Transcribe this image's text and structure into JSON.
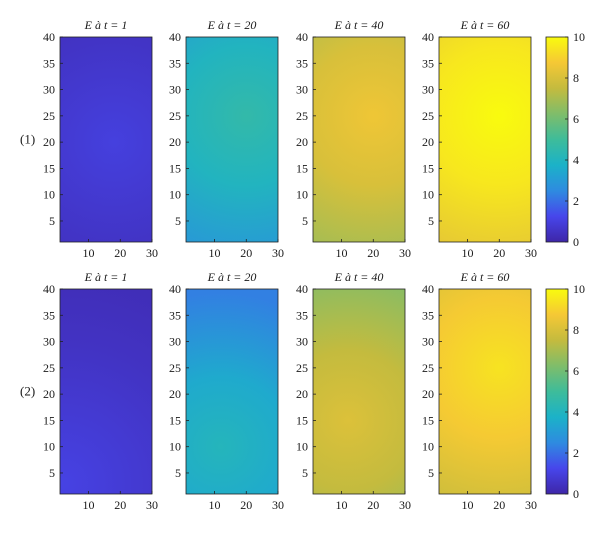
{
  "chart_data": [
    {
      "type": "heatmap",
      "panels": [
        {
          "title": "E à t = 1",
          "intensity": 0.04,
          "hotspot": [
            18,
            20
          ],
          "spread": 2.0
        },
        {
          "title": "E à t = 20",
          "intensity": 0.4,
          "hotspot": [
            20,
            25
          ],
          "spread": 1.0
        },
        {
          "title": "E à t = 40",
          "intensity": 0.8,
          "hotspot": [
            20,
            25
          ],
          "spread": 1.0
        },
        {
          "title": "E à t = 60",
          "intensity": 0.95,
          "hotspot": [
            20,
            25
          ],
          "spread": 1.0
        }
      ],
      "row_label": "(1)",
      "xlim": [
        1,
        30
      ],
      "ylim": [
        1,
        40
      ],
      "xticks": [
        10,
        20,
        30
      ],
      "yticks": [
        5,
        10,
        15,
        20,
        25,
        30,
        35,
        40
      ],
      "colorbar": {
        "min": 0,
        "max": 10,
        "ticks": [
          0,
          2,
          4,
          6,
          8,
          10
        ]
      }
    },
    {
      "type": "heatmap",
      "panels": [
        {
          "title": "E à t = 1",
          "intensity": 0.05,
          "hotspot": [
            2,
            3
          ],
          "spread": 2.0
        },
        {
          "title": "E à t = 20",
          "intensity": 0.35,
          "hotspot": [
            12,
            10
          ],
          "spread": 1.0
        },
        {
          "title": "E à t = 40",
          "intensity": 0.75,
          "hotspot": [
            12,
            15
          ],
          "spread": 1.0
        },
        {
          "title": "E à t = 60",
          "intensity": 0.88,
          "hotspot": [
            20,
            25
          ],
          "spread": 1.0
        }
      ],
      "row_label": "(2)",
      "xlim": [
        1,
        30
      ],
      "ylim": [
        1,
        40
      ],
      "xticks": [
        10,
        20,
        30
      ],
      "yticks": [
        5,
        10,
        15,
        20,
        25,
        30,
        35,
        40
      ],
      "colorbar": {
        "min": 0,
        "max": 10,
        "ticks": [
          0,
          2,
          4,
          6,
          8,
          10
        ]
      }
    }
  ],
  "colormap": [
    "#3e26a8",
    "#4746eb",
    "#2e8be0",
    "#1bb2c8",
    "#3ebc9a",
    "#7fbd6a",
    "#c4bb3e",
    "#f5c835",
    "#f9fb0e"
  ]
}
